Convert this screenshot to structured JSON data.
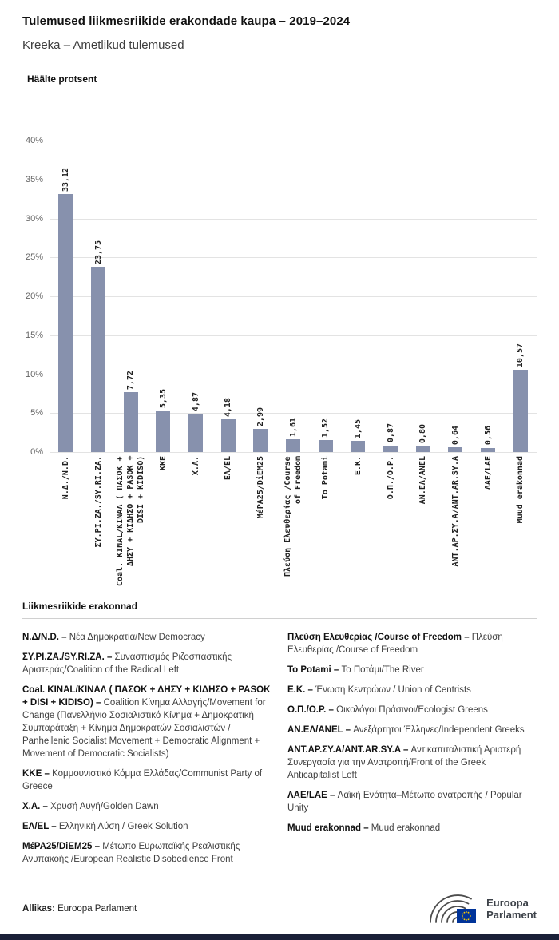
{
  "header": {
    "title": "Tulemused liikmesriikide erakondade kaupa – 2019–2024",
    "subtitle": "Kreeka – Ametlikud tulemused"
  },
  "chart": {
    "axis_title": "Häälte protsent",
    "y_ticks": [
      "40%",
      "35%",
      "30%",
      "25%",
      "20%",
      "15%",
      "10%",
      "5%",
      "0%"
    ],
    "bar_color": "#8791AD",
    "grid_color": "#e3e3e3"
  },
  "chart_data": {
    "type": "bar",
    "title": "Häälte protsent",
    "xlabel": "",
    "ylabel": "Häälte protsent",
    "ylim": [
      0,
      40
    ],
    "y_tick_step": 5,
    "grid": true,
    "legend_position": "none",
    "categories": [
      "Ν.Δ./N.D.",
      "ΣΥ.ΡΙ.ΖΑ./SY.RI.ZA.",
      "Coal. KINAL/ΚΙΝΑΛ ( ΠΑΣΟΚ + ΔΗΣΥ + ΚΙΔΗΣΟ + PASOK + DISI + KIDISO)",
      "ΚΚΕ",
      "Χ.Α.",
      "ΕΛ/EL",
      "ΜέΡΑ25/DiEM25",
      "Πλεύση Ελευθερίας /Course of Freedom",
      "To Potami",
      "Ε.Κ.",
      "Ο.Π./O.P.",
      "ΑΝ.ΕΛ/ANEL",
      "ΑΝΤ.ΑΡ.ΣΥ.Α/ANT.AR.SY.A",
      "ΛΑΕ/LAE",
      "Muud erakonnad"
    ],
    "values": [
      33.12,
      23.75,
      7.72,
      5.35,
      4.87,
      4.18,
      2.99,
      1.61,
      1.52,
      1.45,
      0.87,
      0.8,
      0.64,
      0.56,
      10.57
    ],
    "value_labels": [
      "33,12",
      "23,75",
      "7,72",
      "5,35",
      "4,87",
      "4,18",
      "2,99",
      "1,61",
      "1,52",
      "1,45",
      "0,87",
      "0,80",
      "0,64",
      "0,56",
      "10,57"
    ]
  },
  "legend": {
    "heading": "Liikmesriikide erakonnad",
    "entries": [
      {
        "term": "Ν.Δ/N.D. –",
        "desc": "Νέα Δημοκρατία/New Democracy"
      },
      {
        "term": "ΣΥ.ΡΙ.ΖΑ./SY.RI.ZA. –",
        "desc": "Συνασπισμός Ριζοσπαστικής Αριστεράς/Coalition of the Radical Left"
      },
      {
        "term": "Coal. KINAL/ΚΙΝΑΛ ( ΠΑΣΟΚ + ΔΗΣΥ + ΚΙΔΗΣΟ + PASOK + DISI + KIDISO) –",
        "desc": "Coalition Κίνημα Αλλαγής/Movement for Change (Πανελλήνιο Σοσιαλιστικό Κίνημα + Δημοκρατική Συμπαράταξη + Κίνημα Δημοκρατών Σοσιαλιστών / Panhellenic Socialist Movement + Democratic Alignment + Movement of Democratic Socialists)"
      },
      {
        "term": "ΚΚΕ –",
        "desc": "Κομμουνιστικό Κόμμα Ελλάδας/Communist Party of Greece"
      },
      {
        "term": "Χ.Α. –",
        "desc": "Χρυσή Αυγή/Golden Dawn"
      },
      {
        "term": "ΕΛ/EL –",
        "desc": "Ελληνική Λύση / Greek Solution"
      },
      {
        "term": "ΜέΡΑ25/DiEM25 –",
        "desc": "Μέτωπο Ευρωπαϊκής Ρεαλιστικής Ανυπακοής /European Realistic Disobedience Front"
      },
      {
        "term": "Πλεύση Ελευθερίας /Course of Freedom –",
        "desc": "Πλεύση Ελευθερίας /Course of Freedom"
      },
      {
        "term": "To Potami –",
        "desc": "Το Ποτάμι/The River"
      },
      {
        "term": "Ε.Κ. –",
        "desc": "Ένωση Κεντρώων / Union of Centrists"
      },
      {
        "term": "Ο.Π./O.P. –",
        "desc": "Οικολόγοι Πράσινοι/Ecologist Greens"
      },
      {
        "term": "ΑΝ.ΕΛ/ANEL –",
        "desc": "Ανεξάρτητοι Έλληνες/Independent Greeks"
      },
      {
        "term": "ΑΝΤ.ΑΡ.ΣΥ.Α/ANT.AR.SY.A –",
        "desc": "Αντικαπιταλιστική Αριστερή Συνεργασία για την Ανατροπή/Front of the Greek Anticapitalist Left"
      },
      {
        "term": "ΛΑΕ/LAE –",
        "desc": "Λαϊκή Ενότητα–Μέτωπο ανατροπής / Popular Unity"
      },
      {
        "term": "Muud erakonnad –",
        "desc": "Muud erakonnad"
      }
    ]
  },
  "footer": {
    "source_label": "Allikas:",
    "source_text": "Euroopa Parlament",
    "logo_line1": "Euroopa",
    "logo_line2": "Parlament",
    "flag_color": "#003399",
    "star_color": "#FFCC00"
  }
}
